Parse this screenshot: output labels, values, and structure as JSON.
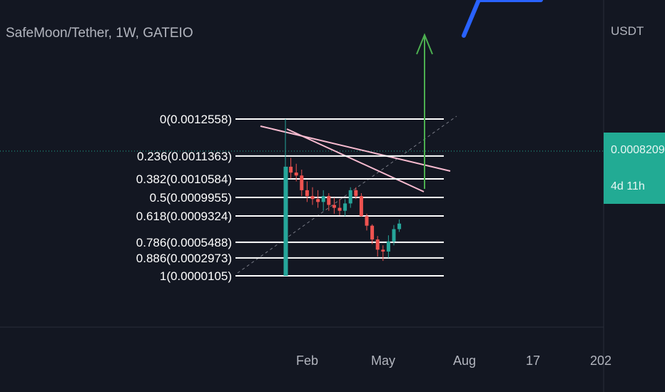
{
  "header": {
    "symbol": "SafeMoon/Tether, 1W, GATEIO"
  },
  "price_axis": {
    "currency": "USDT",
    "last_price": "0.0008209",
    "countdown": "4d 11h",
    "last_price_color": "#22ab94"
  },
  "time_axis": {
    "labels": [
      "Feb",
      "May",
      "Aug",
      "17",
      "202"
    ]
  },
  "chart_data": {
    "type": "candlestick",
    "fib_levels": [
      {
        "ratio": 0,
        "price": 0.0012558,
        "label": "0(0.0012558)"
      },
      {
        "ratio": 0.236,
        "price": 0.0011363,
        "label": "0.236(0.0011363)"
      },
      {
        "ratio": 0.382,
        "price": 0.0010584,
        "label": "0.382(0.0010584)"
      },
      {
        "ratio": 0.5,
        "price": 0.0009955,
        "label": "0.5(0.0009955)"
      },
      {
        "ratio": 0.618,
        "price": 0.0009324,
        "label": "0.618(0.0009324)"
      },
      {
        "ratio": 0.786,
        "price": 0.0005488,
        "label": "0.786(0.0005488)"
      },
      {
        "ratio": 0.886,
        "price": 0.0002973,
        "label": "0.886(0.0002973)"
      },
      {
        "ratio": 1,
        "price": 1.05e-05,
        "label": "1(0.0000105)"
      }
    ],
    "candles": [
      {
        "o": 1.05e-05,
        "h": 0.0012558,
        "l": 1.05e-05,
        "c": 0.0011,
        "dir": "up"
      },
      {
        "o": 0.0011,
        "h": 0.00113,
        "l": 0.00106,
        "c": 0.00108,
        "dir": "down"
      },
      {
        "o": 0.00108,
        "h": 0.00111,
        "l": 0.00105,
        "c": 0.00107,
        "dir": "down"
      },
      {
        "o": 0.00107,
        "h": 0.00109,
        "l": 0.001,
        "c": 0.00102,
        "dir": "down"
      },
      {
        "o": 0.00102,
        "h": 0.00105,
        "l": 0.00098,
        "c": 0.001,
        "dir": "down"
      },
      {
        "o": 0.001,
        "h": 0.00103,
        "l": 0.00097,
        "c": 0.00099,
        "dir": "down"
      },
      {
        "o": 0.00099,
        "h": 0.00102,
        "l": 0.00096,
        "c": 0.00098,
        "dir": "down"
      },
      {
        "o": 0.00098,
        "h": 0.00102,
        "l": 0.00095,
        "c": 0.001,
        "dir": "up"
      },
      {
        "o": 0.001,
        "h": 0.00101,
        "l": 0.00095,
        "c": 0.00097,
        "dir": "down"
      },
      {
        "o": 0.00097,
        "h": 0.000995,
        "l": 0.00094,
        "c": 0.00096,
        "dir": "down"
      },
      {
        "o": 0.00096,
        "h": 0.00099,
        "l": 0.000935,
        "c": 0.00095,
        "dir": "down"
      },
      {
        "o": 0.00095,
        "h": 0.00099,
        "l": 0.00093,
        "c": 0.000975,
        "dir": "up"
      },
      {
        "o": 0.000975,
        "h": 0.00103,
        "l": 0.00096,
        "c": 0.00102,
        "dir": "up"
      },
      {
        "o": 0.00102,
        "h": 0.00103,
        "l": 0.00099,
        "c": 0.001,
        "dir": "down"
      },
      {
        "o": 0.001,
        "h": 0.00101,
        "l": 0.00092,
        "c": 0.00093,
        "dir": "down"
      },
      {
        "o": 0.00093,
        "h": 0.00094,
        "l": 0.00072,
        "c": 0.00079,
        "dir": "down"
      },
      {
        "o": 0.00079,
        "h": 0.00081,
        "l": 0.00052,
        "c": 0.00059,
        "dir": "down"
      },
      {
        "o": 0.00059,
        "h": 0.00064,
        "l": 0.00032,
        "c": 0.00043,
        "dir": "down"
      },
      {
        "o": 0.00043,
        "h": 0.0005,
        "l": 0.00025,
        "c": 0.0004,
        "dir": "down"
      },
      {
        "o": 0.0004,
        "h": 0.00065,
        "l": 0.0003,
        "c": 0.00056,
        "dir": "up"
      },
      {
        "o": 0.00056,
        "h": 0.0008,
        "l": 0.0005,
        "c": 0.00074,
        "dir": "up"
      },
      {
        "o": 0.00074,
        "h": 0.00088,
        "l": 0.0007,
        "c": 0.0008209,
        "dir": "up"
      }
    ],
    "colors": {
      "up": "#26a69a",
      "down": "#ef5350",
      "fib": "#ffffff",
      "channel": "#f8bbd0",
      "arrow": "#4caf50",
      "blue_drawing": "#2962ff"
    }
  }
}
